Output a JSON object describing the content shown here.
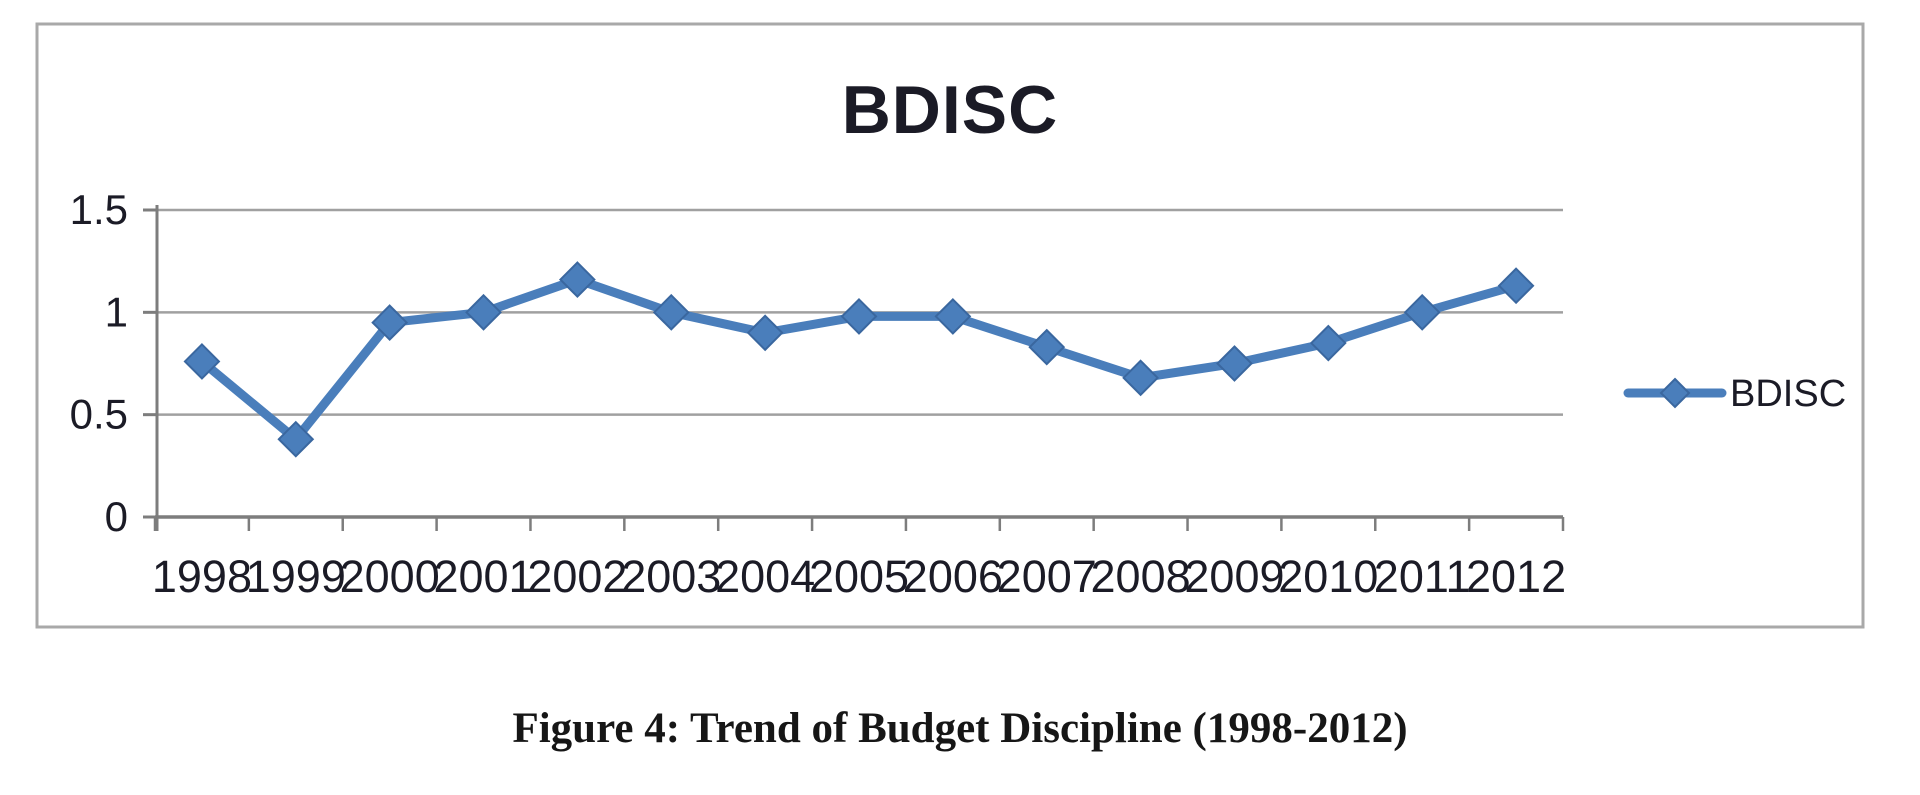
{
  "figure": {
    "caption": "Figure 4: Trend of Budget Discipline (1998-2012)"
  },
  "chart_data": {
    "type": "line",
    "title": "BDISC",
    "categories": [
      "1998",
      "1999",
      "2000",
      "2001",
      "2002",
      "2003",
      "2004",
      "2005",
      "2006",
      "2007",
      "2008",
      "2009",
      "2010",
      "2011",
      "2012"
    ],
    "series": [
      {
        "name": "BDISC",
        "values": [
          0.76,
          0.38,
          0.95,
          1.0,
          1.16,
          1.0,
          0.9,
          0.98,
          0.98,
          0.83,
          0.68,
          0.75,
          0.85,
          1.0,
          1.13
        ]
      }
    ],
    "xlabel": "",
    "ylabel": "",
    "ylim": [
      0,
      1.5
    ],
    "y_ticks": [
      0,
      0.5,
      1,
      1.5
    ],
    "y_tick_labels": [
      "0",
      "0.5",
      "1",
      "1.5"
    ],
    "grid": true,
    "marker": "diamond",
    "legend": {
      "label": "BDISC",
      "position": "right"
    },
    "colors": {
      "series": "#4a7ebb",
      "marker_edge": "#3a679f",
      "grid": "#a0a0a0",
      "axis": "#7d7d7d",
      "text": "#1b1b26",
      "border": "#a9a9a9"
    }
  }
}
